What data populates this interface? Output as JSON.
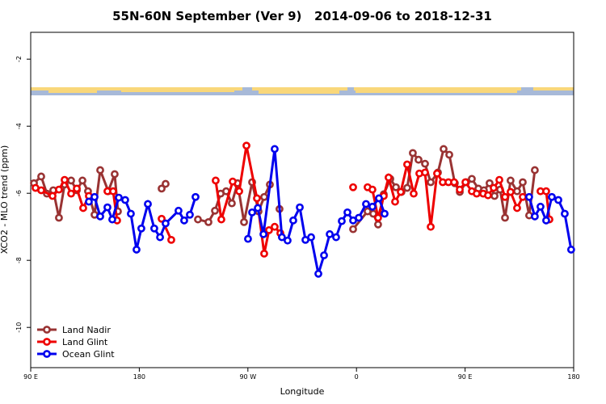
{
  "chart_data": {
    "type": "line",
    "title": "55N-60N September (Ver 9)   2014-09-06 to 2018-12-31",
    "xlabel": "Longitude",
    "ylabel": "XCO2 - MLO trend (ppm)",
    "xlim": [
      90,
      540
    ],
    "ylim": [
      -11.2,
      -1.2
    ],
    "xticks": [
      {
        "value": 90,
        "label": "90 E"
      },
      180,
      {
        "value": 270,
        "label": "90 W"
      },
      {
        "value": 360,
        "label": "0"
      },
      {
        "value": 450,
        "label": "90 E"
      },
      {
        "value": 540,
        "label": "180"
      }
    ],
    "yticks": [
      -2,
      -4,
      -6,
      -8,
      -10
    ],
    "legend": "bottomleft",
    "series": [
      {
        "name": "Land Nadir",
        "color": "#993333",
        "x": [
          92.7,
          98.7,
          103.4,
          108.7,
          113.4,
          118.1,
          123.5,
          128.2,
          132.9,
          137.5,
          142.9,
          147.6,
          154.3,
          159.6,
          162.3,
          null,
          198.5,
          201.8,
          null,
          228.6,
          237.3,
          242.7,
          247.4,
          252.0,
          256.7,
          261.4,
          266.8,
          273.5,
          278.8,
          283.5,
          288.2,
          null,
          296.2,
          null,
          357.2,
          369.2,
          373.9,
          377.9,
          382.6,
          388.0,
          392.7,
          397.3,
          402.0,
          406.7,
          411.4,
          416.8,
          421.5,
          427.5,
          432.2,
          436.9,
          441.5,
          445.6,
          450.9,
          455.6,
          461.0,
          465.6,
          470.3,
          474.4,
          479.0,
          483.1,
          487.7,
          493.1,
          497.8,
          503.1,
          507.8
        ],
        "values": [
          -5.7,
          -5.5,
          -6.01,
          -5.91,
          -6.73,
          -5.74,
          -5.62,
          -5.91,
          -5.62,
          -5.94,
          -6.64,
          -5.31,
          -5.94,
          -5.43,
          -6.54,
          null,
          -5.86,
          -5.72,
          null,
          -6.78,
          -6.86,
          -6.52,
          -6.01,
          -5.94,
          -6.3,
          -5.7,
          -6.86,
          -5.67,
          -6.54,
          -6.11,
          -5.74,
          null,
          -6.47,
          null,
          -7.07,
          -6.54,
          -6.61,
          -6.93,
          -6.03,
          -5.57,
          -5.82,
          -5.96,
          -5.84,
          -4.8,
          -5.0,
          -5.12,
          -5.67,
          -5.38,
          -4.68,
          -4.85,
          -5.7,
          -5.96,
          -5.67,
          -5.57,
          -5.86,
          -5.91,
          -5.7,
          -6.08,
          -5.89,
          -6.73,
          -5.62,
          -5.94,
          -5.67,
          -6.66,
          -5.31
        ]
      },
      {
        "name": "Land Glint",
        "color": "#ee0000",
        "x": [
          94.0,
          98.7,
          108.1,
          113.4,
          118.1,
          123.5,
          128.2,
          133.5,
          138.2,
          null,
          153.6,
          158.3,
          161.6,
          null,
          198.5,
          206.5,
          null,
          243.3,
          248.0,
          257.4,
          262.8,
          268.8,
          277.5,
          283.5,
          287.5,
          292.2,
          296.9,
          null,
          357.2,
          null,
          369.2,
          373.2,
          377.9,
          382.6,
          386.6,
          392.0,
          396.7,
          402.0,
          407.4,
          412.1,
          416.8,
          421.5,
          426.8,
          431.5,
          436.2,
          440.9,
          445.6,
          450.3,
          455.6,
          459.6,
          465.0,
          469.0,
          473.7,
          478.4,
          483.1,
          487.7,
          493.1,
          497.8,
          null,
          512.5,
          517.2,
          519.9
        ],
        "values": [
          -5.84,
          -5.91,
          -6.08,
          -5.89,
          -5.6,
          -6.01,
          -5.86,
          -6.44,
          -6.08,
          null,
          -5.94,
          -5.94,
          -6.81,
          null,
          -6.76,
          -7.39,
          null,
          -5.62,
          -6.78,
          -5.65,
          -5.94,
          -4.58,
          -6.15,
          -7.8,
          -7.1,
          -7.0,
          -7.19,
          null,
          -5.82,
          null,
          -5.82,
          -5.89,
          -6.73,
          -6.08,
          -5.53,
          -6.25,
          -5.96,
          -5.14,
          -6.01,
          -5.41,
          -5.38,
          -7.0,
          -5.41,
          -5.67,
          -5.67,
          -5.67,
          -5.89,
          -5.67,
          -5.94,
          -6.01,
          -6.01,
          -6.06,
          -5.84,
          -5.6,
          -6.11,
          -5.96,
          -6.44,
          -6.11,
          null,
          -5.94,
          -5.94,
          -6.78
        ]
      },
      {
        "name": "Ocean Glint",
        "color": "#0000ee",
        "x": [
          138.2,
          142.9,
          147.6,
          153.6,
          157.6,
          163.0,
          168.3,
          173.0,
          177.7,
          181.7,
          187.1,
          192.4,
          197.2,
          201.8,
          212.5,
          217.2,
          221.9,
          226.6,
          null,
          270.1,
          273.5,
          278.2,
          282.9,
          292.2,
          298.2,
          302.9,
          307.6,
          313.0,
          317.7,
          322.4,
          328.4,
          333.1,
          337.8,
          343.1,
          347.8,
          352.5,
          357.2,
          361.9,
          367.9,
          373.2,
          378.6,
          383.3,
          null,
          503.1,
          507.8,
          512.5,
          517.2,
          521.9,
          527.3,
          532.6,
          537.9
        ],
        "values": [
          -6.25,
          -6.11,
          -6.69,
          -6.42,
          -6.78,
          -6.13,
          -6.2,
          -6.61,
          -7.68,
          -7.05,
          -6.32,
          -7.05,
          -7.31,
          -6.9,
          -6.52,
          -6.81,
          -6.64,
          -6.11,
          null,
          -7.36,
          -6.57,
          -6.44,
          -7.22,
          -4.68,
          -7.31,
          -7.41,
          -6.81,
          -6.42,
          -7.39,
          -7.31,
          -8.4,
          -7.85,
          -7.22,
          -7.31,
          -6.83,
          -6.57,
          -6.81,
          -6.73,
          -6.32,
          -6.4,
          -6.15,
          -6.61,
          null,
          -6.11,
          -6.69,
          -6.4,
          -6.81,
          -6.11,
          -6.2,
          -6.61,
          -7.68
        ]
      }
    ]
  }
}
